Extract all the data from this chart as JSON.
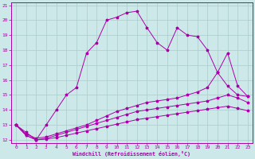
{
  "xlabel": "Windchill (Refroidissement éolien,°C)",
  "xlim": [
    -0.5,
    23.5
  ],
  "ylim": [
    11.8,
    21.2
  ],
  "yticks": [
    12,
    13,
    14,
    15,
    16,
    17,
    18,
    19,
    20,
    21
  ],
  "xticks": [
    0,
    1,
    2,
    3,
    4,
    5,
    6,
    7,
    8,
    9,
    10,
    11,
    12,
    13,
    14,
    15,
    16,
    17,
    18,
    19,
    20,
    21,
    22,
    23
  ],
  "bg_color": "#cce8e8",
  "grid_color": "#aacccc",
  "line_color": "#aa00aa",
  "curve1_x": [
    0,
    1,
    2,
    3,
    4,
    5,
    6,
    7,
    8,
    9,
    10,
    11,
    12,
    13,
    14,
    15,
    16,
    17,
    18,
    19,
    20,
    21,
    22,
    23
  ],
  "curve1_y": [
    13.0,
    12.5,
    12.0,
    13.0,
    14.0,
    15.0,
    15.5,
    17.8,
    18.5,
    20.0,
    20.2,
    20.5,
    20.6,
    19.5,
    18.5,
    18.0,
    19.5,
    19.0,
    18.9,
    18.0,
    16.5,
    15.6,
    15.0,
    14.9
  ],
  "curve2_x": [
    0,
    1,
    2,
    3,
    4,
    5,
    6,
    7,
    8,
    9,
    10,
    11,
    12,
    13,
    14,
    15,
    16,
    17,
    18,
    19,
    20,
    21,
    22,
    23
  ],
  "curve2_y": [
    13.0,
    12.4,
    12.1,
    12.2,
    12.4,
    12.6,
    12.8,
    13.0,
    13.3,
    13.6,
    13.9,
    14.1,
    14.3,
    14.5,
    14.6,
    14.7,
    14.8,
    15.0,
    15.2,
    15.5,
    16.5,
    17.8,
    15.6,
    14.9
  ],
  "curve3_x": [
    0,
    1,
    2,
    3,
    4,
    5,
    6,
    7,
    8,
    9,
    10,
    11,
    12,
    13,
    14,
    15,
    16,
    17,
    18,
    19,
    20,
    21,
    22,
    23
  ],
  "curve3_y": [
    13.0,
    12.3,
    12.0,
    12.1,
    12.3,
    12.5,
    12.7,
    12.9,
    13.1,
    13.3,
    13.5,
    13.7,
    13.9,
    14.0,
    14.1,
    14.2,
    14.3,
    14.4,
    14.5,
    14.6,
    14.8,
    15.0,
    14.8,
    14.5
  ],
  "curve4_x": [
    0,
    1,
    2,
    3,
    4,
    5,
    6,
    7,
    8,
    9,
    10,
    11,
    12,
    13,
    14,
    15,
    16,
    17,
    18,
    19,
    20,
    21,
    22,
    23
  ],
  "curve4_y": [
    13.0,
    12.3,
    12.0,
    12.05,
    12.15,
    12.3,
    12.45,
    12.6,
    12.75,
    12.9,
    13.05,
    13.2,
    13.35,
    13.45,
    13.55,
    13.65,
    13.75,
    13.85,
    13.95,
    14.05,
    14.15,
    14.25,
    14.1,
    13.95
  ]
}
